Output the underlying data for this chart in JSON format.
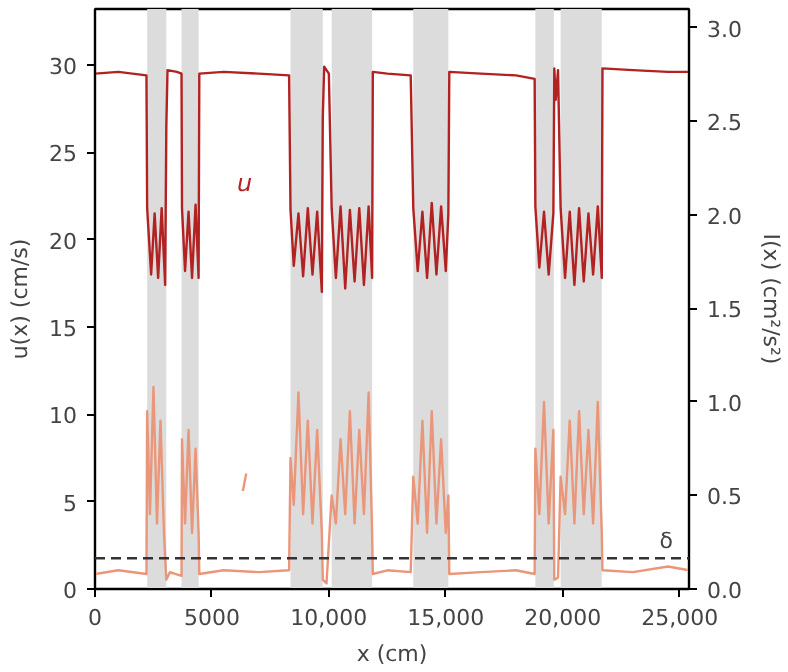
{
  "chart_data": {
    "type": "line",
    "xlabel": "x (cm)",
    "ylabel": "u(x) (cm/s)",
    "y2label": "I(x) (cm²/s²)",
    "xlim": [
      0,
      25400
    ],
    "ylim": [
      0,
      33.2
    ],
    "y2lim": [
      0,
      3.1
    ],
    "xticks": [
      0,
      5000,
      {
        "value": 10000,
        "label": "10,000"
      },
      {
        "value": 15000,
        "label": "15,000"
      },
      {
        "value": 20000,
        "label": "20,000"
      },
      {
        "value": 25000,
        "label": "25,000"
      }
    ],
    "yticks": [
      0,
      5,
      10,
      15,
      20,
      25,
      30
    ],
    "y2ticks": [
      {
        "value": 0,
        "label": "0.0"
      },
      0.5,
      {
        "value": 1,
        "label": "1.0"
      },
      1.5,
      {
        "value": 2,
        "label": "2.0"
      },
      2.5,
      {
        "value": 3,
        "label": "3.0"
      }
    ],
    "grid": false,
    "series": [
      {
        "name": "u",
        "color": "#b22222",
        "x": [
          0,
          1000,
          2200,
          2230,
          2400,
          2550,
          2700,
          2850,
          3000,
          3050,
          3100,
          3500,
          3700,
          3720,
          3850,
          4000,
          4150,
          4300,
          4430,
          4460,
          5500,
          7000,
          8300,
          8360,
          8500,
          8700,
          8900,
          9100,
          9300,
          9500,
          9700,
          9740,
          9800,
          10000,
          10120,
          10300,
          10500,
          10700,
          10900,
          11100,
          11300,
          11500,
          11700,
          11850,
          11880,
          12500,
          13500,
          13610,
          13800,
          14000,
          14200,
          14400,
          14600,
          14800,
          15000,
          15110,
          15150,
          16500,
          18000,
          18800,
          18830,
          19000,
          19200,
          19400,
          19600,
          19640,
          19700,
          19800,
          19910,
          20100,
          20300,
          20500,
          20700,
          20900,
          21100,
          21300,
          21500,
          21670,
          21700,
          23000,
          24500,
          25400
        ],
        "values": [
          29.5,
          29.6,
          29.4,
          21.8,
          18,
          21.5,
          17.8,
          21.8,
          17.4,
          26.5,
          29.7,
          29.6,
          29.5,
          21.8,
          18.2,
          21.6,
          17.8,
          22,
          17.8,
          29.5,
          29.6,
          29.5,
          29.4,
          21.7,
          18.5,
          21.5,
          17.9,
          21.8,
          18,
          21.6,
          17,
          27,
          29.9,
          29.5,
          21.8,
          17.8,
          21.9,
          17.2,
          21.7,
          17.6,
          21.8,
          17.4,
          21.9,
          17.8,
          29.6,
          29.5,
          29.4,
          21.8,
          18.2,
          21.6,
          17.8,
          22.1,
          18,
          21.9,
          18.2,
          21.5,
          29.6,
          29.5,
          29.4,
          29.2,
          21.9,
          18.4,
          21.6,
          18,
          21.5,
          29.8,
          28,
          29.7,
          21.8,
          17.8,
          21.6,
          17.4,
          21.8,
          17.6,
          21.5,
          18,
          21.9,
          17.8,
          29.8,
          29.7,
          29.6,
          29.6
        ]
      },
      {
        "name": "I",
        "color": "#e9967a",
        "axis": "y2",
        "x": [
          0,
          1000,
          2200,
          2230,
          2350,
          2500,
          2650,
          2800,
          2950,
          3050,
          3200,
          3700,
          3720,
          3850,
          4000,
          4150,
          4300,
          4430,
          4460,
          5500,
          7000,
          8300,
          8360,
          8500,
          8700,
          8900,
          9100,
          9300,
          9500,
          9700,
          9740,
          9900,
          10120,
          10300,
          10500,
          10700,
          10900,
          11100,
          11300,
          11500,
          11700,
          11850,
          11880,
          12500,
          13500,
          13610,
          13800,
          14000,
          14200,
          14400,
          14600,
          14800,
          15000,
          15110,
          15150,
          16500,
          18000,
          18800,
          18830,
          19000,
          19200,
          19400,
          19600,
          19640,
          19800,
          19910,
          20100,
          20300,
          20500,
          20700,
          20900,
          21100,
          21300,
          21500,
          21670,
          21700,
          23000,
          24500,
          25400
        ],
        "values": [
          0.08,
          0.1,
          0.08,
          0.95,
          0.4,
          1.08,
          0.35,
          0.9,
          0.3,
          0.05,
          0.09,
          0.07,
          0.8,
          0.35,
          0.85,
          0.3,
          0.75,
          0.3,
          0.08,
          0.1,
          0.09,
          0.1,
          0.7,
          0.45,
          1.05,
          0.4,
          0.9,
          0.35,
          0.85,
          0.3,
          0.05,
          0.03,
          0.5,
          0.35,
          0.8,
          0.4,
          0.95,
          0.35,
          0.85,
          0.4,
          1.05,
          0.3,
          0.08,
          0.1,
          0.09,
          0.6,
          0.35,
          0.9,
          0.3,
          0.95,
          0.35,
          0.8,
          0.3,
          0.5,
          0.08,
          0.09,
          0.1,
          0.08,
          0.75,
          0.4,
          1.0,
          0.35,
          0.85,
          0.05,
          0.06,
          0.6,
          0.4,
          0.9,
          0.35,
          0.95,
          0.4,
          0.85,
          0.35,
          1.0,
          0.3,
          0.1,
          0.09,
          0.12,
          0.1
        ]
      }
    ],
    "bands": [
      {
        "axis": "x",
        "from": 2230,
        "to": 3050,
        "color": "#dcdcdc"
      },
      {
        "axis": "x",
        "from": 3700,
        "to": 4430,
        "color": "#dcdcdc"
      },
      {
        "axis": "x",
        "from": 8360,
        "to": 9740,
        "color": "#dcdcdc"
      },
      {
        "axis": "x",
        "from": 10120,
        "to": 11850,
        "color": "#dcdcdc"
      },
      {
        "axis": "x",
        "from": 13610,
        "to": 15110,
        "color": "#dcdcdc"
      },
      {
        "axis": "x",
        "from": 18830,
        "to": 19620,
        "color": "#dcdcdc"
      },
      {
        "axis": "x",
        "from": 19910,
        "to": 21670,
        "color": "#dcdcdc"
      }
    ],
    "ref_lines": [
      {
        "axis": "y",
        "value": 1.76,
        "label": "δ",
        "color": "#333333",
        "line_style": "dashed"
      }
    ]
  }
}
